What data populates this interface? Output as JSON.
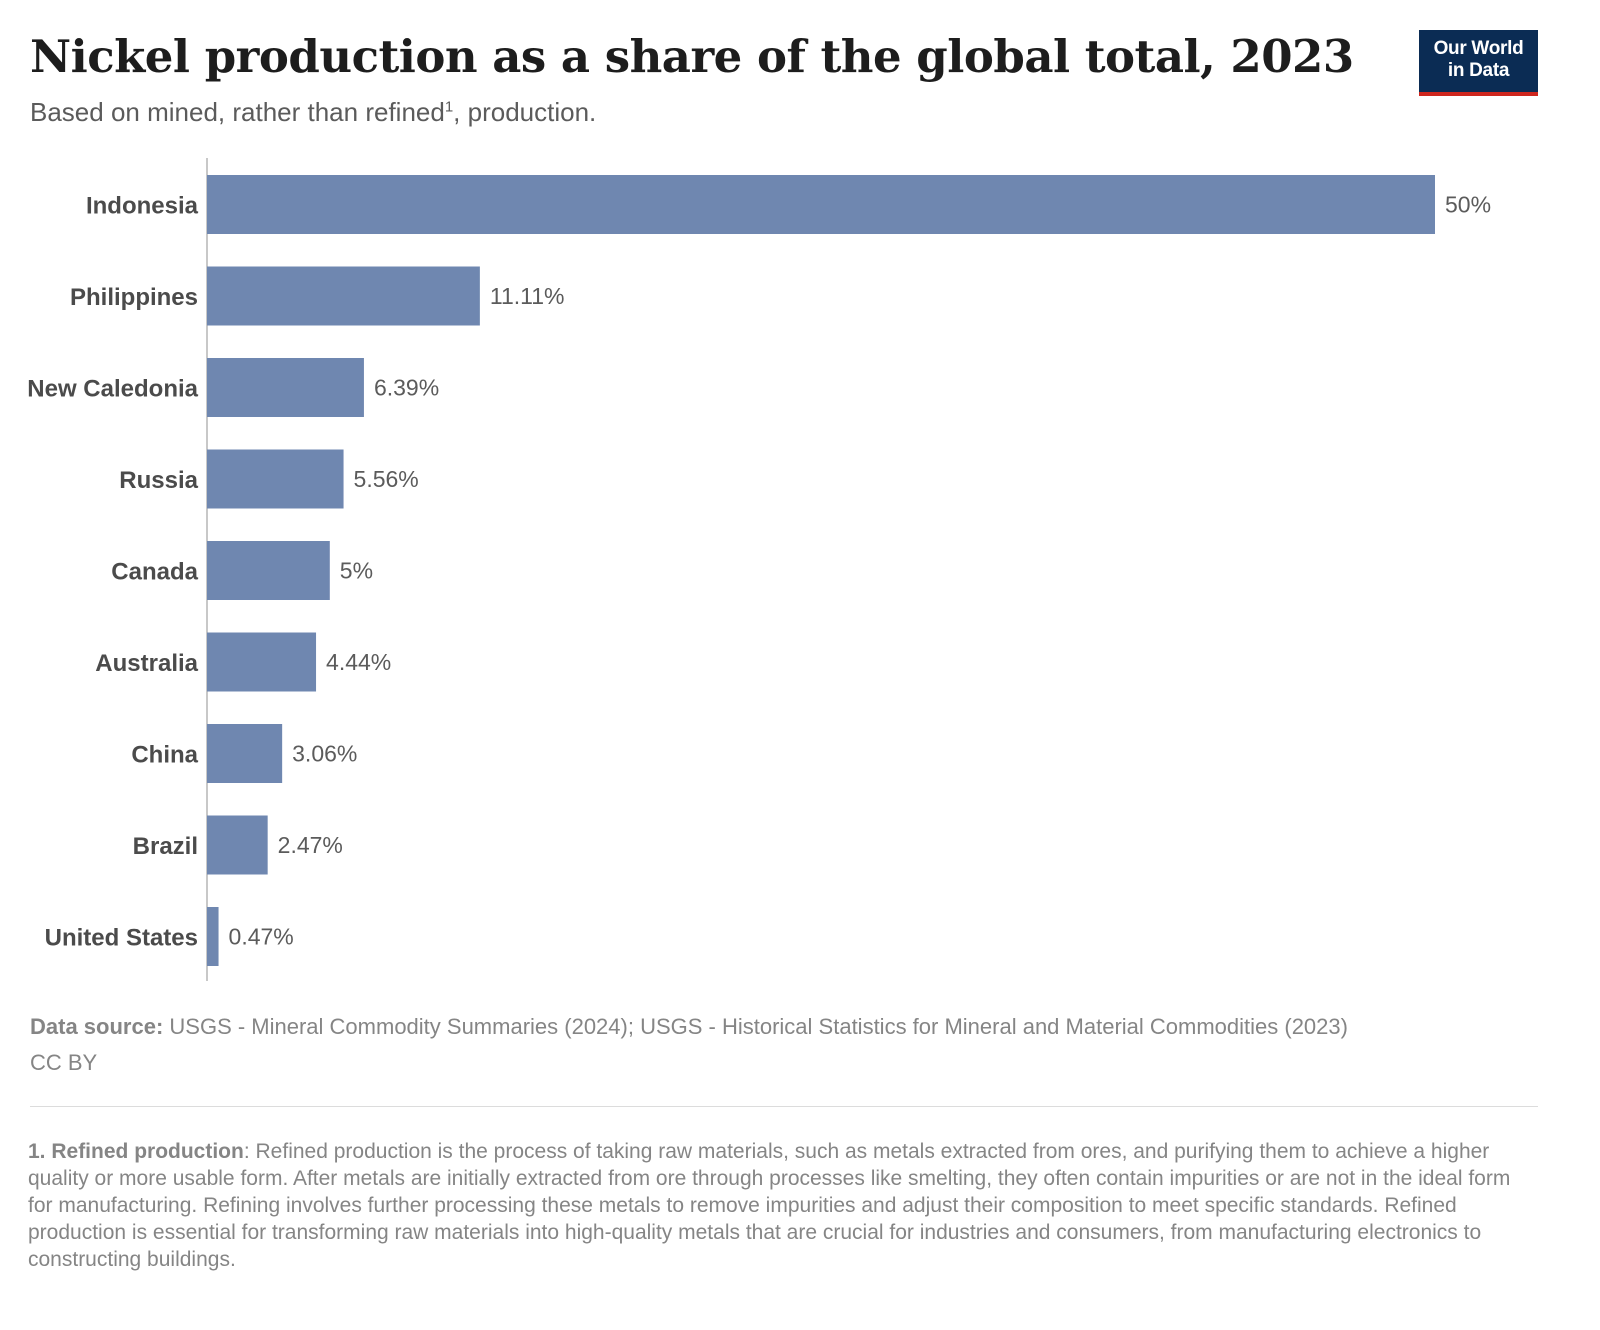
{
  "header": {
    "title": "Nickel production as a share of the global total, 2023",
    "subtitle_before": "Based on mined, rather than refined",
    "subtitle_sup": "1",
    "subtitle_after": ", production."
  },
  "logo": {
    "line1": "Our World",
    "line2": "in Data",
    "bg_color": "#0b2c54",
    "accent_color": "#ce261e"
  },
  "chart_data": {
    "type": "bar",
    "orientation": "horizontal",
    "categories": [
      "Indonesia",
      "Philippines",
      "New Caledonia",
      "Russia",
      "Canada",
      "Australia",
      "China",
      "Brazil",
      "United States"
    ],
    "values": [
      50,
      11.11,
      6.39,
      5.56,
      5,
      4.44,
      3.06,
      2.47,
      0.47
    ],
    "value_labels": [
      "50%",
      "11.11%",
      "6.39%",
      "5.56%",
      "5%",
      "4.44%",
      "3.06%",
      "2.47%",
      "0.47%"
    ],
    "unit": "%",
    "xlim": [
      0,
      50
    ],
    "bar_color": "#6f87b0",
    "grid": false
  },
  "footer": {
    "source_label": "Data source:",
    "source_text": " USGS - Mineral Commodity Summaries (2024); USGS - Historical Statistics for Mineral and Material Commodities (2023)",
    "license": "CC BY",
    "footnote_label": "1. Refined production",
    "footnote_text": ": Refined production is the process of taking raw materials, such as metals extracted from ores, and purifying them to achieve a higher quality or more usable form. After metals are initially extracted from ore through processes like smelting, they often contain impurities or are not in the ideal form for manufacturing. Refining involves further processing these metals to remove impurities and adjust their composition to meet specific standards. Refined production is essential for transforming raw materials into high-quality metals that are crucial for industries and consumers, from manufacturing electronics to constructing buildings."
  }
}
